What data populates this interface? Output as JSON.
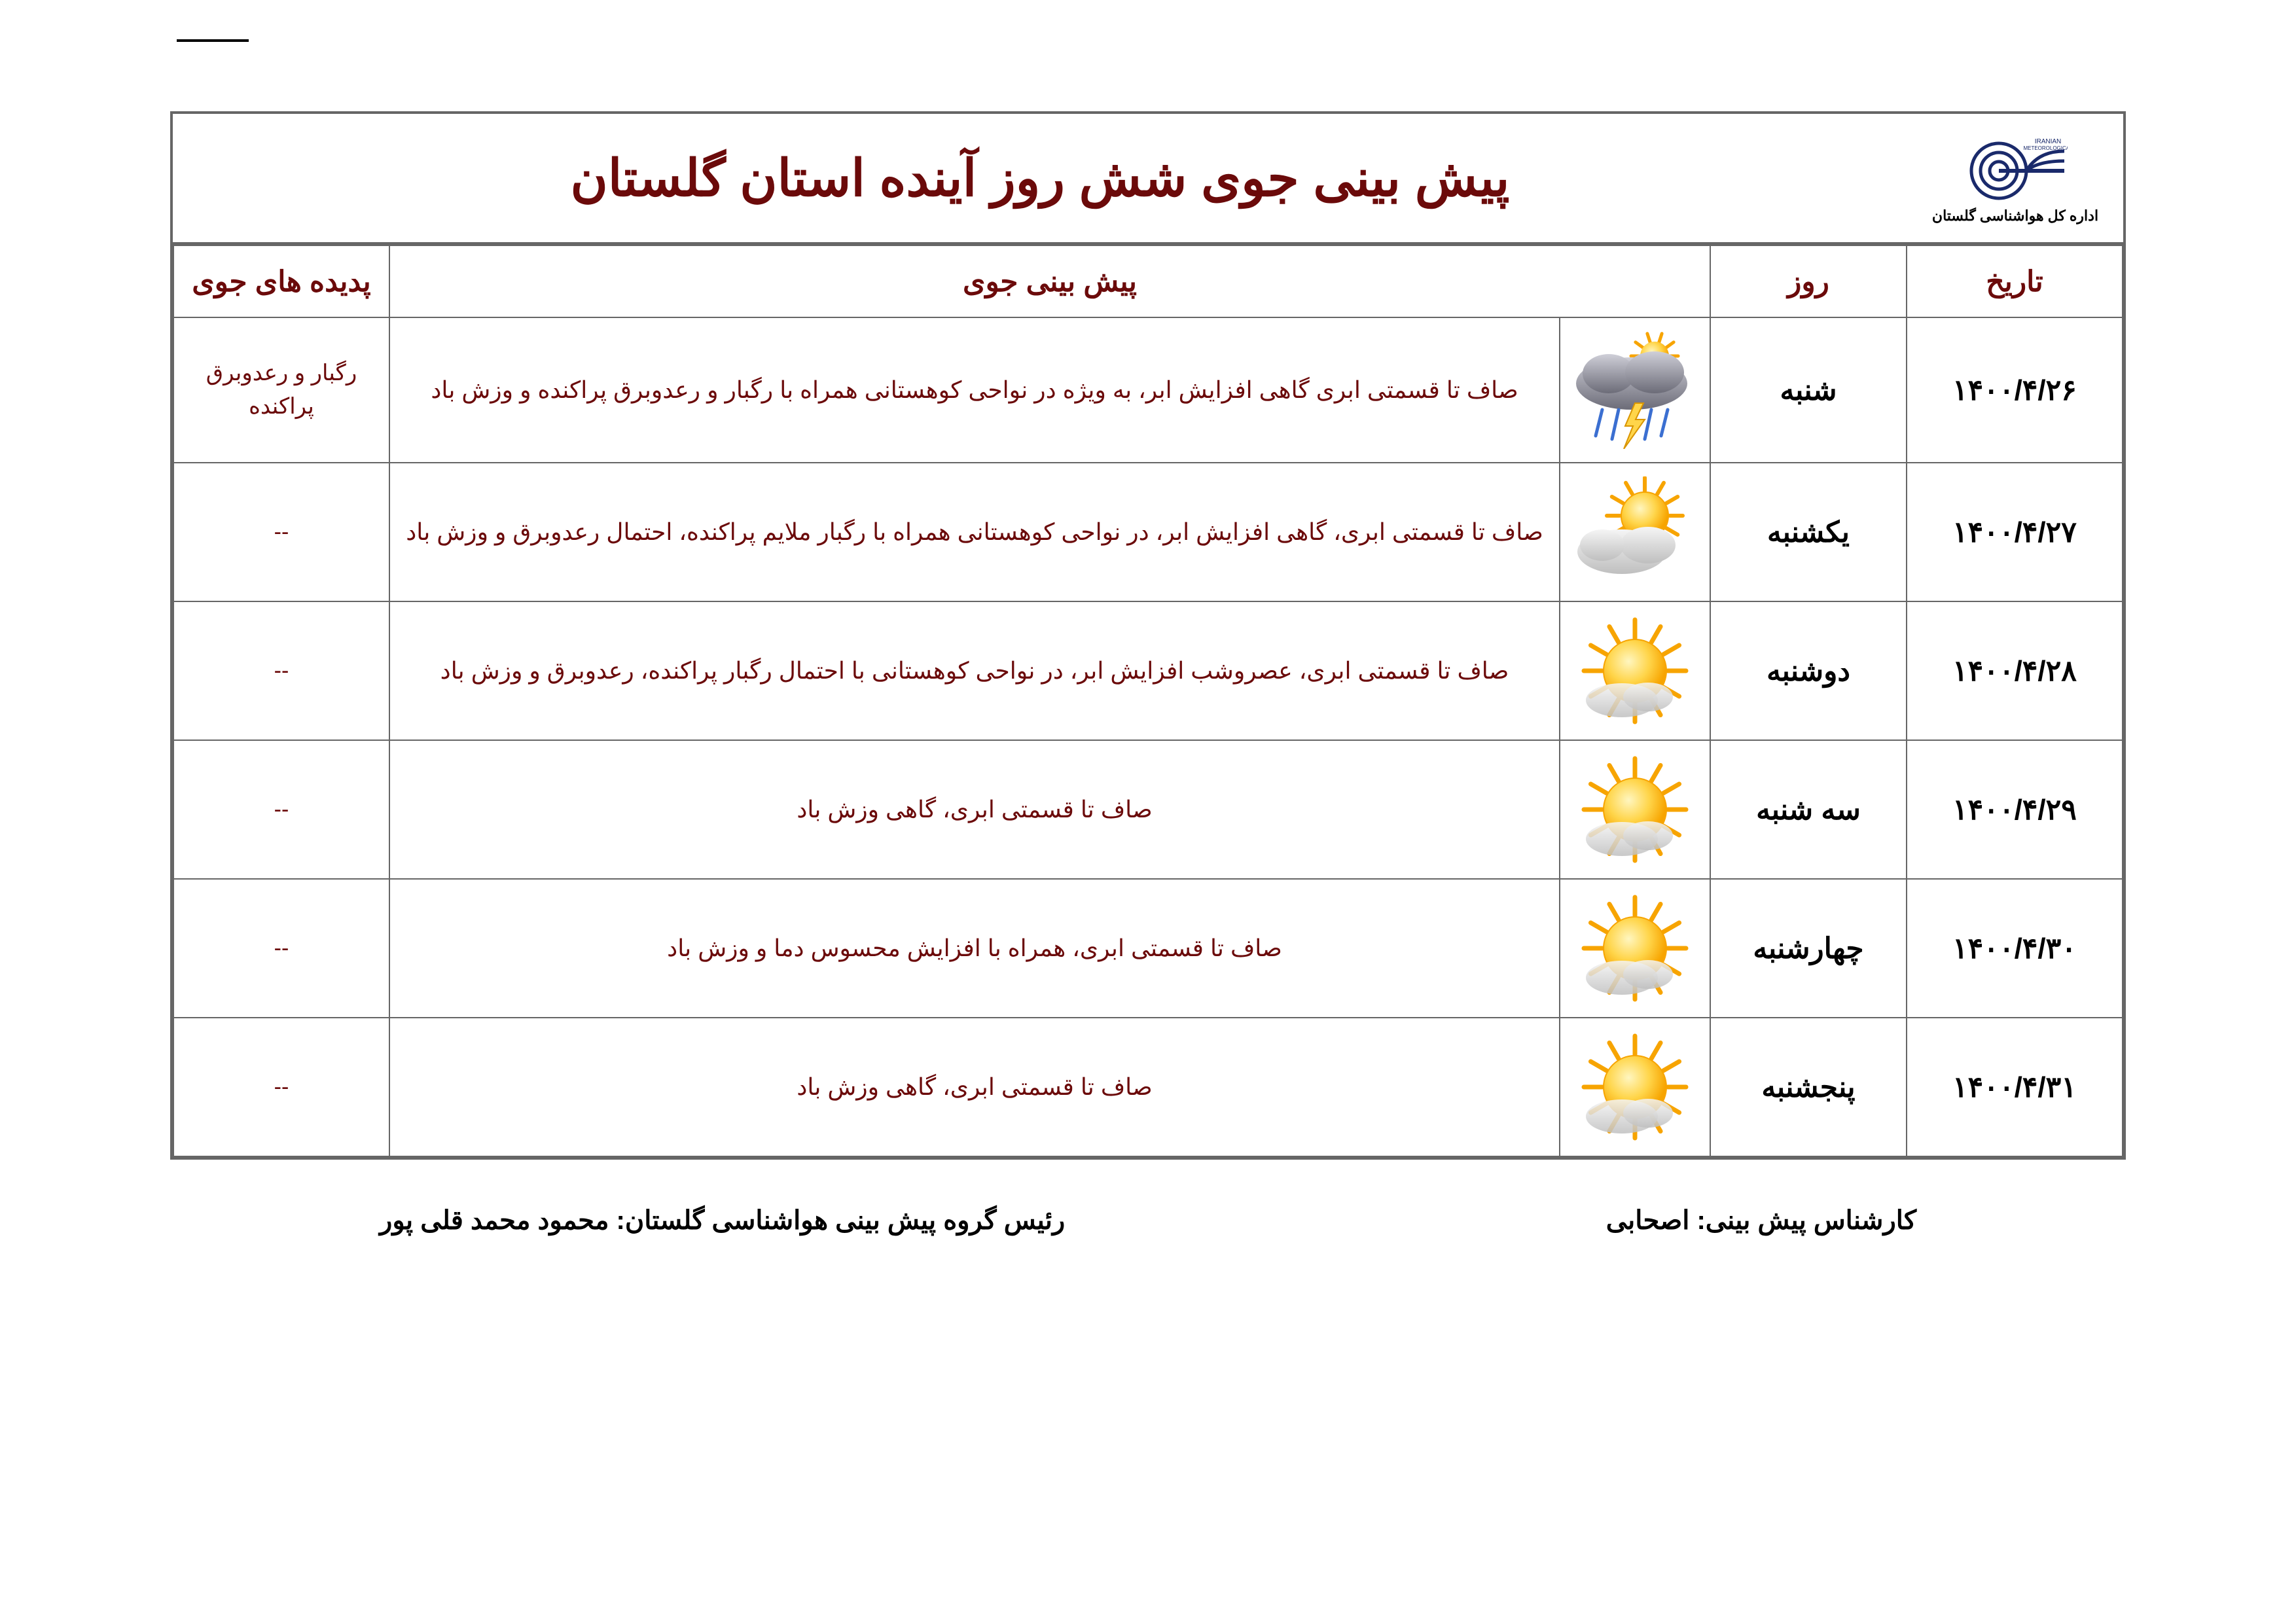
{
  "organization": {
    "logo_caption": "اداره کل هواشناسی گلستان",
    "logo_color": "#1a2a6b"
  },
  "title": "پیش بینی جوی شش روز آینده استان گلستان",
  "colors": {
    "title_color": "#6b0a0a",
    "border_color": "#666666",
    "text_color": "#000000",
    "desc_color": "#6b0a0a"
  },
  "columns": {
    "date": "تاریخ",
    "day": "روز",
    "forecast": "پیش بینی جوی",
    "phenomena": "پدیده های جوی"
  },
  "rows": [
    {
      "date": "۱۴۰۰/۴/۲۶",
      "day": "شنبه",
      "icon": "storm",
      "description": "صاف تا قسمتی ابری گاهی افزایش ابر، به ویژه در نواحی کوهستانی همراه با رگبار و رعدوبرق پراکنده و وزش باد",
      "phenomena": "رگبار و رعدوبرق پراکنده"
    },
    {
      "date": "۱۴۰۰/۴/۲۷",
      "day": "یکشنبه",
      "icon": "sun-cloud",
      "description": "صاف تا قسمتی ابری، گاهی افزایش ابر، در نواحی کوهستانی همراه با رگبار ملایم پراکنده، احتمال رعدوبرق و وزش باد",
      "phenomena": "--"
    },
    {
      "date": "۱۴۰۰/۴/۲۸",
      "day": "دوشنبه",
      "icon": "sun",
      "description": "صاف تا قسمتی ابری، عصروشب افزایش ابر، در نواحی کوهستانی با احتمال رگبار پراکنده، رعدوبرق و وزش باد",
      "phenomena": "--"
    },
    {
      "date": "۱۴۰۰/۴/۲۹",
      "day": "سه شنبه",
      "icon": "sun",
      "description": "صاف تا قسمتی ابری، گاهی وزش باد",
      "phenomena": "--"
    },
    {
      "date": "۱۴۰۰/۴/۳۰",
      "day": "چهارشنبه",
      "icon": "sun",
      "description": "صاف تا قسمتی ابری، همراه با افزایش محسوس دما و وزش باد",
      "phenomena": "--"
    },
    {
      "date": "۱۴۰۰/۴/۳۱",
      "day": "پنجشنبه",
      "icon": "sun",
      "description": "صاف تا قسمتی ابری، گاهی وزش باد",
      "phenomena": "--"
    }
  ],
  "footer": {
    "expert_label": "کارشناس پیش بینی:",
    "expert_name": "اصحابی",
    "chief_label": "رئیس گروه پیش بینی هواشناسی گلستان:",
    "chief_name": "محمود محمد قلی پور"
  }
}
